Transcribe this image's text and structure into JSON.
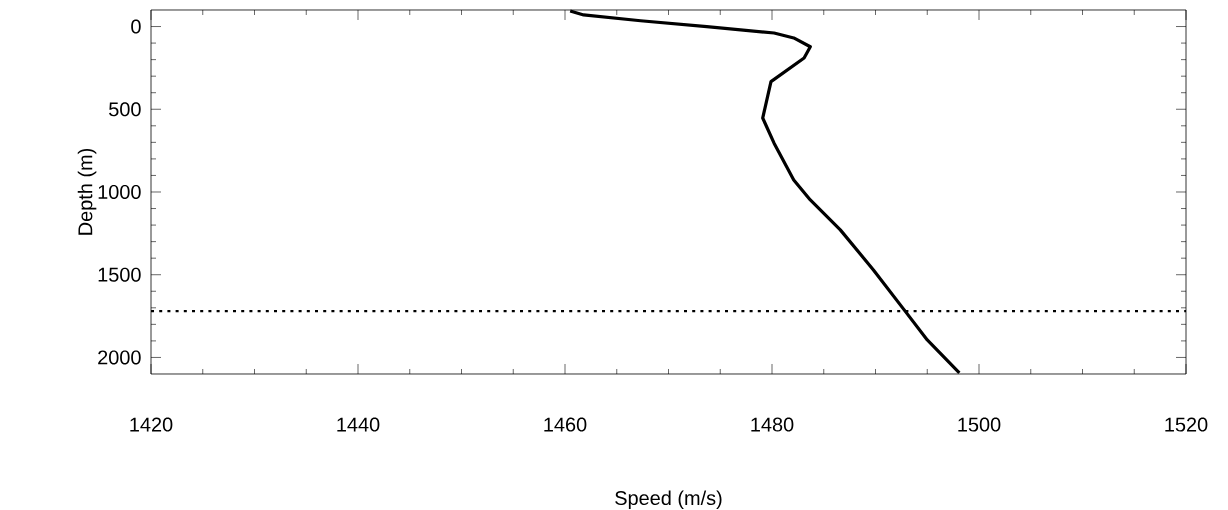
{
  "chart_data": {
    "type": "line",
    "xlabel": "Speed (m/s)",
    "ylabel": "Depth (m)",
    "xlim": [
      1420,
      1520
    ],
    "xticks": [
      1420,
      1440,
      1460,
      1480,
      1500,
      1520
    ],
    "ylim": [
      2100,
      -100
    ],
    "yticks": [
      0,
      500,
      1000,
      1500,
      2000
    ],
    "grid": false,
    "marker": "none",
    "line_style": "solid",
    "series": [
      {
        "color": "#000000",
        "x": [
          1460.5,
          1461.8,
          1467.3,
          1473.7,
          1480.2,
          1482.1,
          1483.7,
          1483.1,
          1479.9,
          1479.1,
          1480.2,
          1482.1,
          1483.7,
          1486.6,
          1489.8,
          1492.9,
          1495.0,
          1498.1
        ],
        "values": [
          -94,
          -70,
          -35,
          1,
          39,
          69,
          122,
          190,
          333,
          553,
          705,
          927,
          1048,
          1229,
          1471,
          1723,
          1894,
          2093
        ]
      }
    ],
    "ref_lines": [
      {
        "axis": "y",
        "value": 1720,
        "line_style": "dotted",
        "color": "#000000"
      }
    ]
  }
}
